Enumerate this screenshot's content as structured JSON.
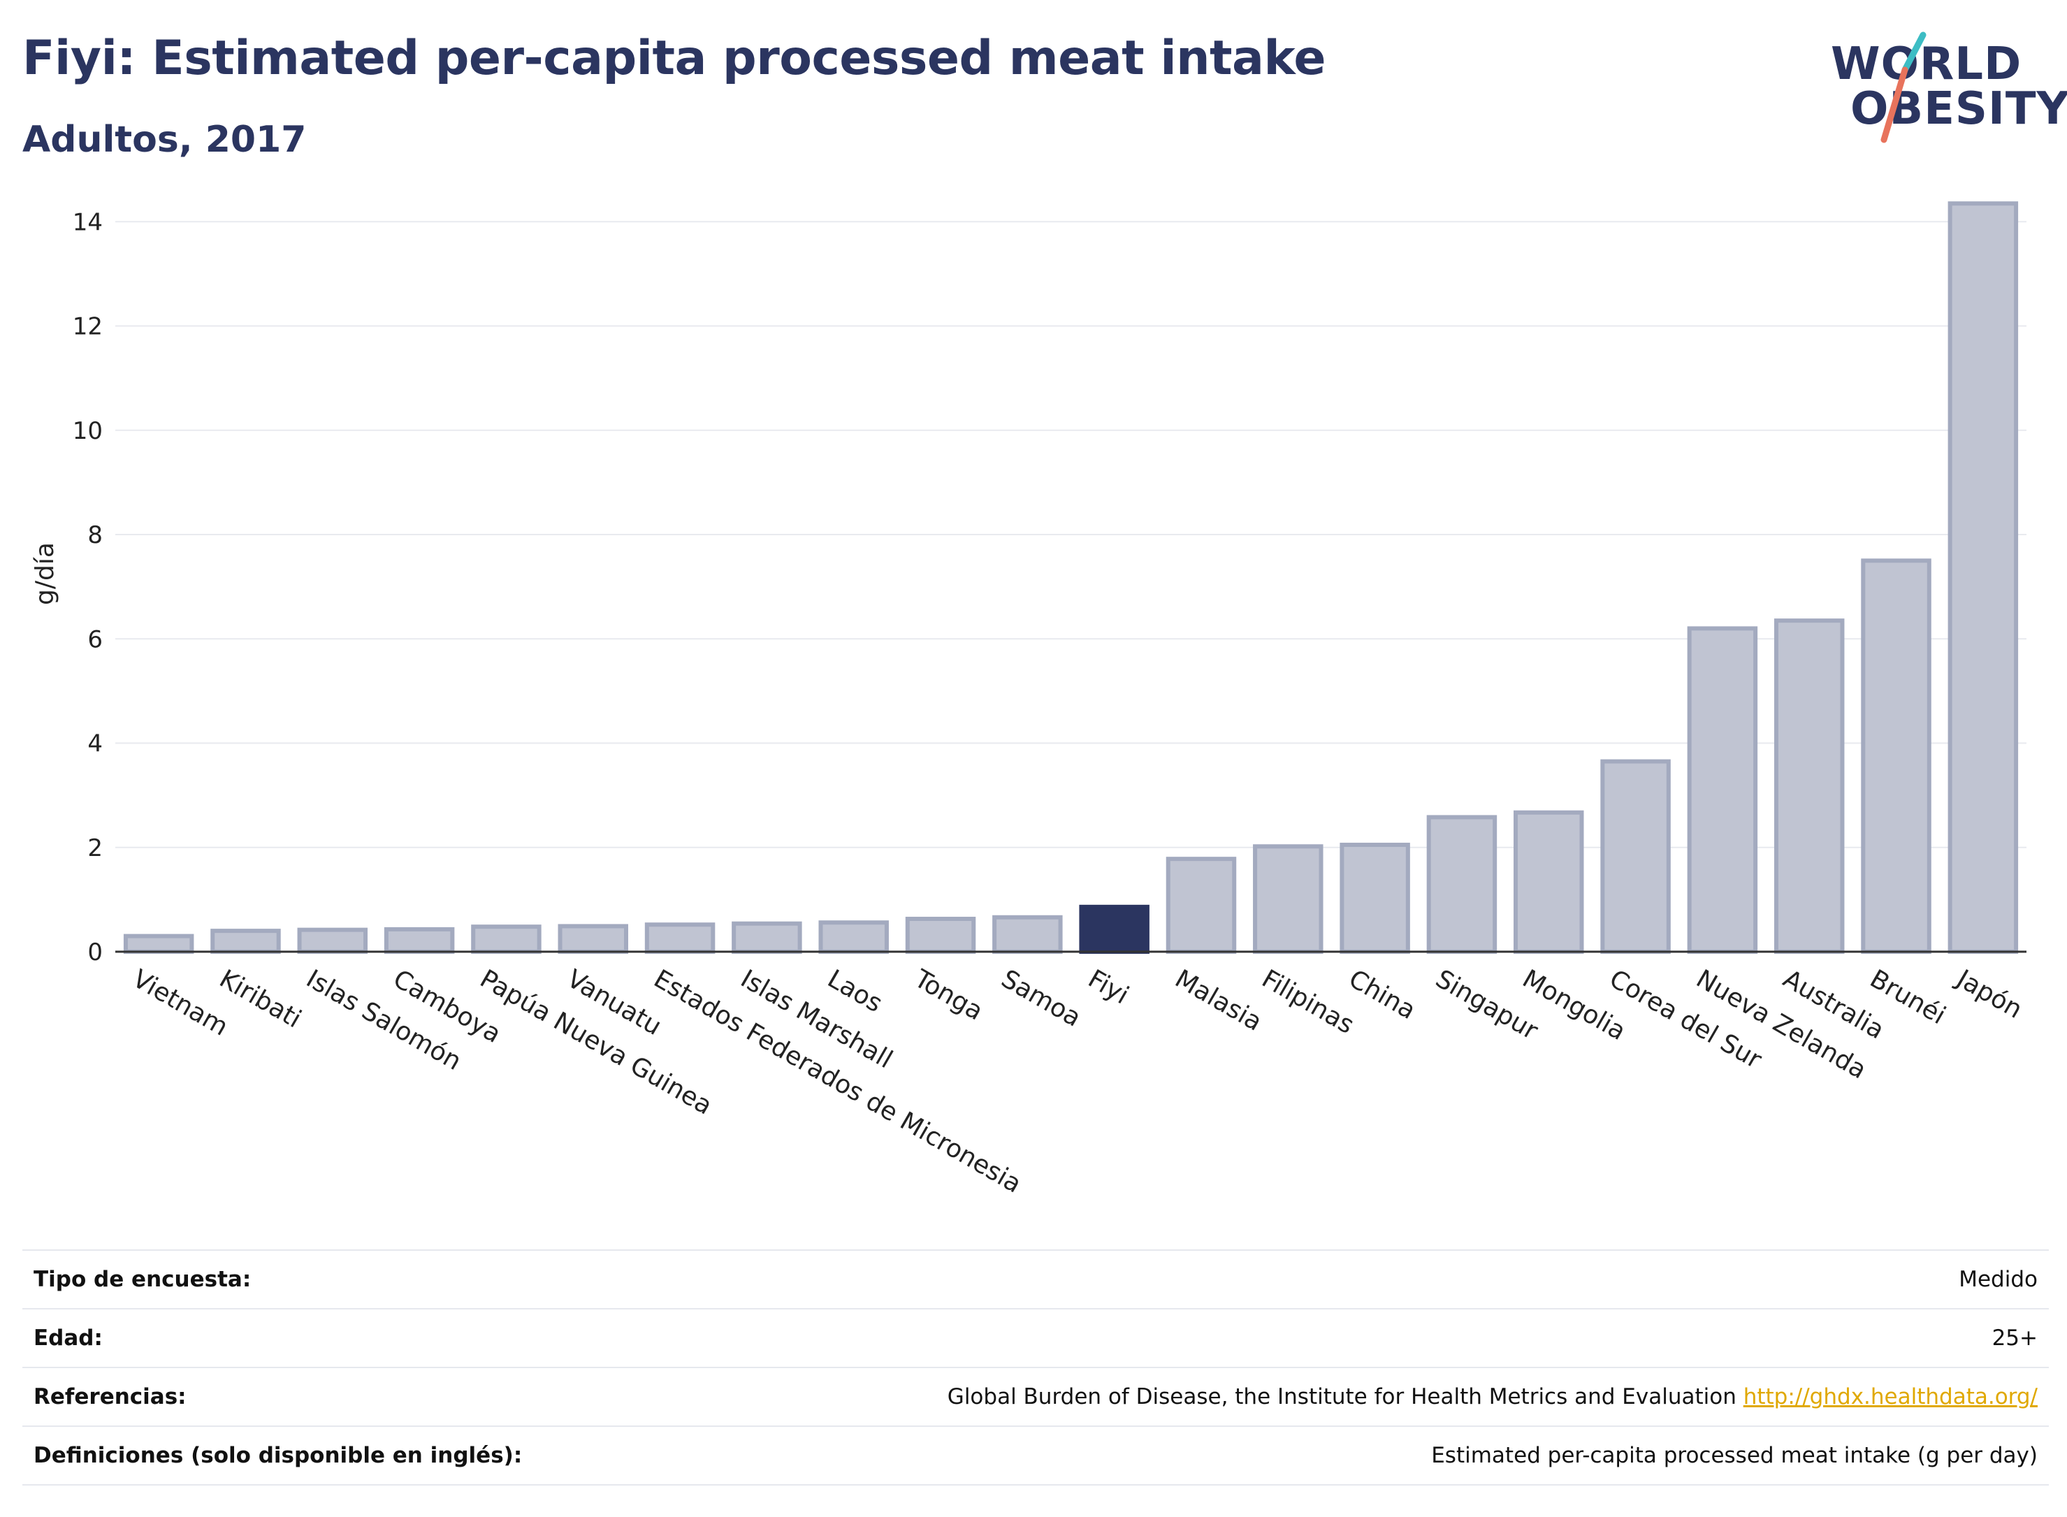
{
  "header": {
    "title": "Fiyi: Estimated per-capita processed meat intake",
    "subtitle": "Adultos, 2017"
  },
  "logo": {
    "line1": "WORLD",
    "line2": "OBESITY"
  },
  "colors": {
    "bar": "#c0c4d2",
    "bar_stroke": "#a3aabf",
    "highlight": "#2b3560",
    "grid": "#e8eaef",
    "axis": "#333333",
    "logo_teal": "#3dbdc4",
    "logo_red": "#e8735c"
  },
  "chart_data": {
    "type": "bar",
    "title": "Fiyi: Estimated per-capita processed meat intake",
    "subtitle": "Adultos, 2017",
    "xlabel": "",
    "ylabel": "g/día",
    "ylim": [
      0,
      14.5
    ],
    "yticks": [
      0,
      2,
      4,
      6,
      8,
      10,
      12,
      14
    ],
    "grid": true,
    "highlight": "Fiyi",
    "categories": [
      "Vietnam",
      "Kiribati",
      "Islas Salomón",
      "Camboya",
      "Papúa Nueva Guinea",
      "Vanuatu",
      "Estados Federados de Micronesia",
      "Islas Marshall",
      "Laos",
      "Tonga",
      "Samoa",
      "Fiyi",
      "Malasia",
      "Filipinas",
      "China",
      "Singapur",
      "Mongolia",
      "Corea del Sur",
      "Nueva Zelanda",
      "Australia",
      "Brunéi",
      "Japón"
    ],
    "values": [
      0.3,
      0.4,
      0.42,
      0.43,
      0.48,
      0.49,
      0.52,
      0.54,
      0.56,
      0.63,
      0.66,
      0.86,
      1.78,
      2.02,
      2.05,
      2.58,
      2.67,
      3.65,
      6.2,
      6.35,
      7.5,
      14.35
    ]
  },
  "meta": [
    {
      "label": "Tipo de encuesta:",
      "value": "Medido"
    },
    {
      "label": "Edad:",
      "value": "25+"
    },
    {
      "label": "Referencias:",
      "value": "Global Burden of Disease, the Institute for Health Metrics and Evaluation",
      "link": "http://ghdx.healthdata.org/"
    },
    {
      "label": "Definiciones (solo disponible en inglés):",
      "value": "Estimated per-capita processed meat intake (g per day)"
    }
  ]
}
